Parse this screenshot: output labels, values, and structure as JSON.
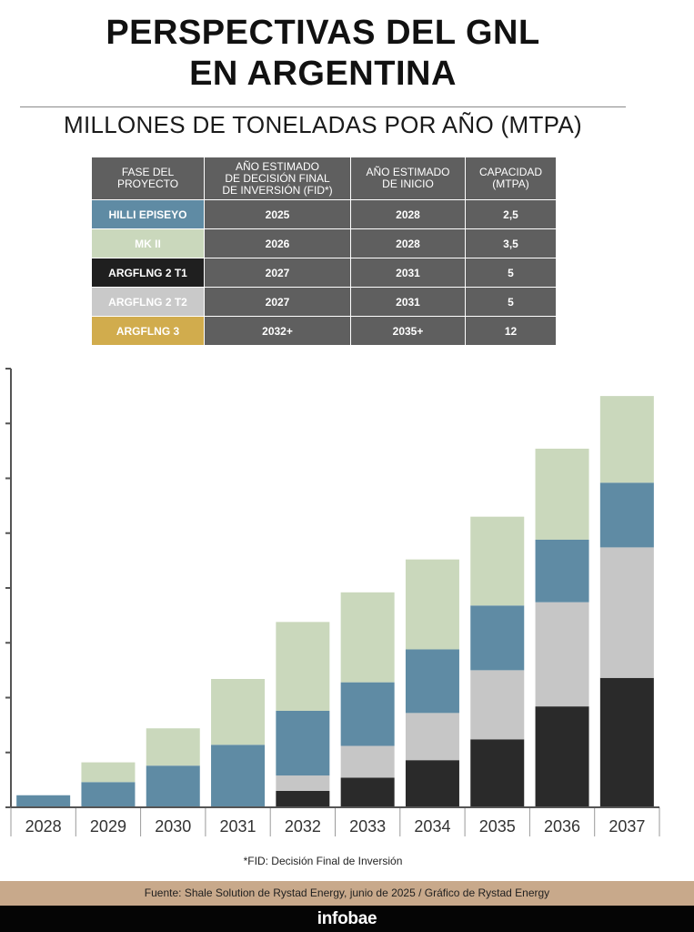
{
  "header": {
    "title_line1": "PERSPECTIVAS DEL GNL",
    "title_line2": "EN ARGENTINA",
    "subtitle": "MILLONES DE TONELADAS POR AÑO (MTPA)"
  },
  "table": {
    "columns": [
      "FASE DEL\nPROYECTO",
      "AÑO ESTIMADO\nDE DECISIÓN FINAL\nDE INVERSIÓN (FID*)",
      "AÑO ESTIMADO\nDE INICIO",
      "CAPACIDAD\n(MTPA)"
    ],
    "rows": [
      {
        "project": "HILLI EPISEYO",
        "fid": "2025",
        "start": "2028",
        "capacity": "2,5",
        "color": "#5f8ba4",
        "text_color": "#ffffff"
      },
      {
        "project": "MK II",
        "fid": "2026",
        "start": "2028",
        "capacity": "3,5",
        "color": "#cad8bc",
        "text_color": "#ffffff"
      },
      {
        "project": "ARGFLNG 2 T1",
        "fid": "2027",
        "start": "2031",
        "capacity": "5",
        "color": "#1f1f1f",
        "text_color": "#ffffff"
      },
      {
        "project": "ARGFLNG 2 T2",
        "fid": "2027",
        "start": "2031",
        "capacity": "5",
        "color": "#c9c9c9",
        "text_color": "#ffffff"
      },
      {
        "project": "ARGFLNG 3",
        "fid": "2032+",
        "start": "2035+",
        "capacity": "12",
        "color": "#d1ac4d",
        "text_color": "#ffffff"
      }
    ]
  },
  "chart_data": {
    "type": "bar",
    "stacked": true,
    "categories": [
      "2028",
      "2029",
      "2030",
      "2031",
      "2032",
      "2033",
      "2034",
      "2035",
      "2036",
      "2037"
    ],
    "series": [
      {
        "color": "#2a2a2a",
        "values": [
          0,
          0,
          0,
          0,
          1.5,
          2.7,
          4.3,
          6.2,
          9.2,
          11.8
        ]
      },
      {
        "color": "#c6c6c6",
        "values": [
          0,
          0,
          0,
          0,
          1.4,
          2.9,
          4.3,
          6.3,
          9.5,
          11.9
        ]
      },
      {
        "color": "#5f8ba4",
        "values": [
          1.1,
          2.3,
          3.8,
          5.7,
          5.9,
          5.8,
          5.8,
          5.9,
          5.7,
          5.9
        ]
      },
      {
        "color": "#cad8bc",
        "values": [
          0,
          1.8,
          3.4,
          6.0,
          8.1,
          8.2,
          8.2,
          8.1,
          8.3,
          7.9
        ]
      }
    ],
    "ylim": [
      0,
      40
    ],
    "y_ticks": [
      0,
      5,
      10,
      15,
      20,
      25,
      30,
      35,
      40
    ],
    "y_tick_labels_shown": false,
    "grid": false,
    "axis_color": "#555555"
  },
  "footnote": "*FID: Decisión Final de Inversión",
  "source": "Fuente: Shale Solution de Rystad Energy, junio de 2025   / Gráfico de Rystad Energy",
  "brand": "infobae",
  "colors": {
    "header_cell": "#5f5f5f",
    "source_bar": "#c8a98b",
    "brand_bar": "#050505"
  }
}
